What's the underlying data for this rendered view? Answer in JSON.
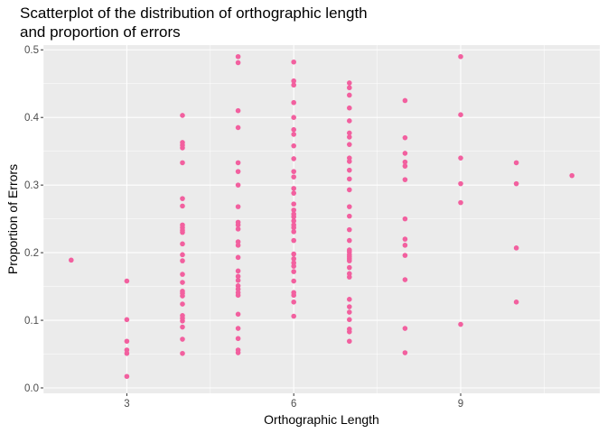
{
  "chart_data": {
    "type": "scatter",
    "title": [
      "Scatterplot of the distribution of orthographic length",
      "and proportion of errors"
    ],
    "xlabel": "Orthographic Length",
    "ylabel": "Proportion of Errors",
    "xlim": [
      1.5,
      11.5
    ],
    "ylim": [
      -0.008,
      0.507
    ],
    "x_ticks": [
      3,
      6,
      9
    ],
    "x_tick_labels": [
      "3",
      "6",
      "9"
    ],
    "y_ticks": [
      0.0,
      0.1,
      0.2,
      0.3,
      0.4,
      0.5
    ],
    "y_tick_labels": [
      "0.0",
      "0.1",
      "0.2",
      "0.3",
      "0.4",
      "0.5"
    ],
    "x_minor_gridlines": [
      1.5,
      4.5,
      7.5,
      10.5
    ],
    "y_minor_gridlines": [
      0.05,
      0.15,
      0.25,
      0.35,
      0.45
    ],
    "grid": true,
    "colors": {
      "panel": "#EBEBEB",
      "grid": "#FFFFFF",
      "point": "#F2609F",
      "tick": "#4D4D4D",
      "text": "#000000"
    },
    "points": [
      [
        2,
        0.189
      ],
      [
        3,
        0.158
      ],
      [
        3,
        0.101
      ],
      [
        3,
        0.069
      ],
      [
        3,
        0.056
      ],
      [
        3,
        0.051
      ],
      [
        3,
        0.017
      ],
      [
        4,
        0.403
      ],
      [
        4,
        0.363
      ],
      [
        4,
        0.359
      ],
      [
        4,
        0.355
      ],
      [
        4,
        0.333
      ],
      [
        4,
        0.28
      ],
      [
        4,
        0.269
      ],
      [
        4,
        0.241
      ],
      [
        4,
        0.237
      ],
      [
        4,
        0.233
      ],
      [
        4,
        0.23
      ],
      [
        4,
        0.213
      ],
      [
        4,
        0.197
      ],
      [
        4,
        0.188
      ],
      [
        4,
        0.168
      ],
      [
        4,
        0.156
      ],
      [
        4,
        0.143
      ],
      [
        4,
        0.14
      ],
      [
        4,
        0.136
      ],
      [
        4,
        0.124
      ],
      [
        4,
        0.107
      ],
      [
        4,
        0.103
      ],
      [
        4,
        0.099
      ],
      [
        4,
        0.09
      ],
      [
        4,
        0.072
      ],
      [
        4,
        0.051
      ],
      [
        5,
        0.49
      ],
      [
        5,
        0.481
      ],
      [
        5,
        0.41
      ],
      [
        5,
        0.385
      ],
      [
        5,
        0.333
      ],
      [
        5,
        0.32
      ],
      [
        5,
        0.3
      ],
      [
        5,
        0.268
      ],
      [
        5,
        0.245
      ],
      [
        5,
        0.241
      ],
      [
        5,
        0.235
      ],
      [
        5,
        0.216
      ],
      [
        5,
        0.211
      ],
      [
        5,
        0.193
      ],
      [
        5,
        0.173
      ],
      [
        5,
        0.165
      ],
      [
        5,
        0.159
      ],
      [
        5,
        0.151
      ],
      [
        5,
        0.146
      ],
      [
        5,
        0.141
      ],
      [
        5,
        0.137
      ],
      [
        5,
        0.109
      ],
      [
        5,
        0.088
      ],
      [
        5,
        0.073
      ],
      [
        5,
        0.056
      ],
      [
        5,
        0.052
      ],
      [
        6,
        0.482
      ],
      [
        6,
        0.454
      ],
      [
        6,
        0.448
      ],
      [
        6,
        0.422
      ],
      [
        6,
        0.4
      ],
      [
        6,
        0.382
      ],
      [
        6,
        0.375
      ],
      [
        6,
        0.358
      ],
      [
        6,
        0.339
      ],
      [
        6,
        0.32
      ],
      [
        6,
        0.312
      ],
      [
        6,
        0.295
      ],
      [
        6,
        0.288
      ],
      [
        6,
        0.272
      ],
      [
        6,
        0.263
      ],
      [
        6,
        0.257
      ],
      [
        6,
        0.253
      ],
      [
        6,
        0.247
      ],
      [
        6,
        0.241
      ],
      [
        6,
        0.237
      ],
      [
        6,
        0.231
      ],
      [
        6,
        0.218
      ],
      [
        6,
        0.198
      ],
      [
        6,
        0.191
      ],
      [
        6,
        0.185
      ],
      [
        6,
        0.18
      ],
      [
        6,
        0.172
      ],
      [
        6,
        0.158
      ],
      [
        6,
        0.141
      ],
      [
        6,
        0.137
      ],
      [
        6,
        0.127
      ],
      [
        6,
        0.106
      ],
      [
        7,
        0.451
      ],
      [
        7,
        0.444
      ],
      [
        7,
        0.433
      ],
      [
        7,
        0.414
      ],
      [
        7,
        0.395
      ],
      [
        7,
        0.377
      ],
      [
        7,
        0.371
      ],
      [
        7,
        0.36
      ],
      [
        7,
        0.34
      ],
      [
        7,
        0.335
      ],
      [
        7,
        0.322
      ],
      [
        7,
        0.309
      ],
      [
        7,
        0.293
      ],
      [
        7,
        0.268
      ],
      [
        7,
        0.254
      ],
      [
        7,
        0.234
      ],
      [
        7,
        0.218
      ],
      [
        7,
        0.204
      ],
      [
        7,
        0.201
      ],
      [
        7,
        0.197
      ],
      [
        7,
        0.194
      ],
      [
        7,
        0.191
      ],
      [
        7,
        0.188
      ],
      [
        7,
        0.178
      ],
      [
        7,
        0.169
      ],
      [
        7,
        0.164
      ],
      [
        7,
        0.131
      ],
      [
        7,
        0.12
      ],
      [
        7,
        0.112
      ],
      [
        7,
        0.101
      ],
      [
        7,
        0.087
      ],
      [
        7,
        0.083
      ],
      [
        7,
        0.069
      ],
      [
        8,
        0.425
      ],
      [
        8,
        0.37
      ],
      [
        8,
        0.347
      ],
      [
        8,
        0.334
      ],
      [
        8,
        0.328
      ],
      [
        8,
        0.308
      ],
      [
        8,
        0.25
      ],
      [
        8,
        0.22
      ],
      [
        8,
        0.211
      ],
      [
        8,
        0.196
      ],
      [
        8,
        0.16
      ],
      [
        8,
        0.088
      ],
      [
        8,
        0.052
      ],
      [
        9,
        0.49
      ],
      [
        9,
        0.404
      ],
      [
        9,
        0.34
      ],
      [
        9,
        0.302
      ],
      [
        9,
        0.274
      ],
      [
        9,
        0.094
      ],
      [
        10,
        0.333
      ],
      [
        10,
        0.302
      ],
      [
        10,
        0.207
      ],
      [
        10,
        0.127
      ],
      [
        11,
        0.314
      ]
    ]
  }
}
